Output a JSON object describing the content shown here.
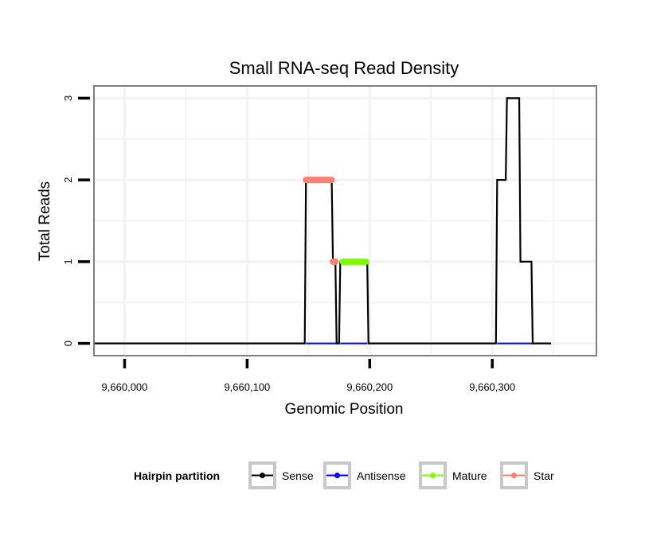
{
  "chart_data": {
    "type": "line",
    "title": "Small RNA-seq Read Density",
    "xlabel": "Genomic Position",
    "ylabel": "Total Reads",
    "xlim": [
      9659975,
      9660385
    ],
    "ylim": [
      -0.15,
      3.15
    ],
    "x_ticks": [
      9660000,
      9660100,
      9660200,
      9660300
    ],
    "x_tick_labels": [
      "9,660,000",
      "9,660,100",
      "9,660,200",
      "9,660,300"
    ],
    "y_ticks": [
      0,
      1,
      2,
      3
    ],
    "y_tick_labels": [
      "0",
      "1",
      "2",
      "3"
    ],
    "grid": true,
    "legend": {
      "title": "Hairpin partition",
      "position": "bottom",
      "entries": [
        "Sense",
        "Antisense",
        "Mature",
        "Star"
      ]
    },
    "colors": {
      "Sense": "#000000",
      "Antisense": "#0000ff",
      "Mature": "#7cfc00",
      "Star": "#fa8072"
    },
    "series": [
      {
        "name": "Sense",
        "style": "line",
        "points": [
          [
            9659975,
            0
          ],
          [
            9660147,
            0
          ],
          [
            9660148,
            2
          ],
          [
            9660169,
            2
          ],
          [
            9660170,
            1
          ],
          [
            9660172,
            1
          ],
          [
            9660173,
            0
          ],
          [
            9660175,
            0
          ],
          [
            9660176,
            1
          ],
          [
            9660198,
            1
          ],
          [
            9660199,
            0
          ],
          [
            9660303,
            0
          ],
          [
            9660304,
            2
          ],
          [
            9660311,
            2
          ],
          [
            9660312,
            3
          ],
          [
            9660322,
            3
          ],
          [
            9660323,
            1
          ],
          [
            9660332,
            1
          ],
          [
            9660333,
            0
          ],
          [
            9660348,
            0
          ]
        ]
      },
      {
        "name": "Antisense",
        "style": "line",
        "points": [
          [
            9660148,
            0
          ],
          [
            9660173,
            0
          ],
          [
            9660176,
            0
          ],
          [
            9660198,
            0
          ],
          [
            9660304,
            0
          ],
          [
            9660333,
            0
          ]
        ]
      },
      {
        "name": "Mature",
        "style": "thick",
        "segments": [
          [
            9660178,
            9660197,
            1
          ]
        ]
      },
      {
        "name": "Star",
        "style": "thick",
        "segments": [
          [
            9660148,
            9660169,
            2
          ],
          [
            9660170,
            9660172,
            1
          ]
        ]
      }
    ]
  }
}
